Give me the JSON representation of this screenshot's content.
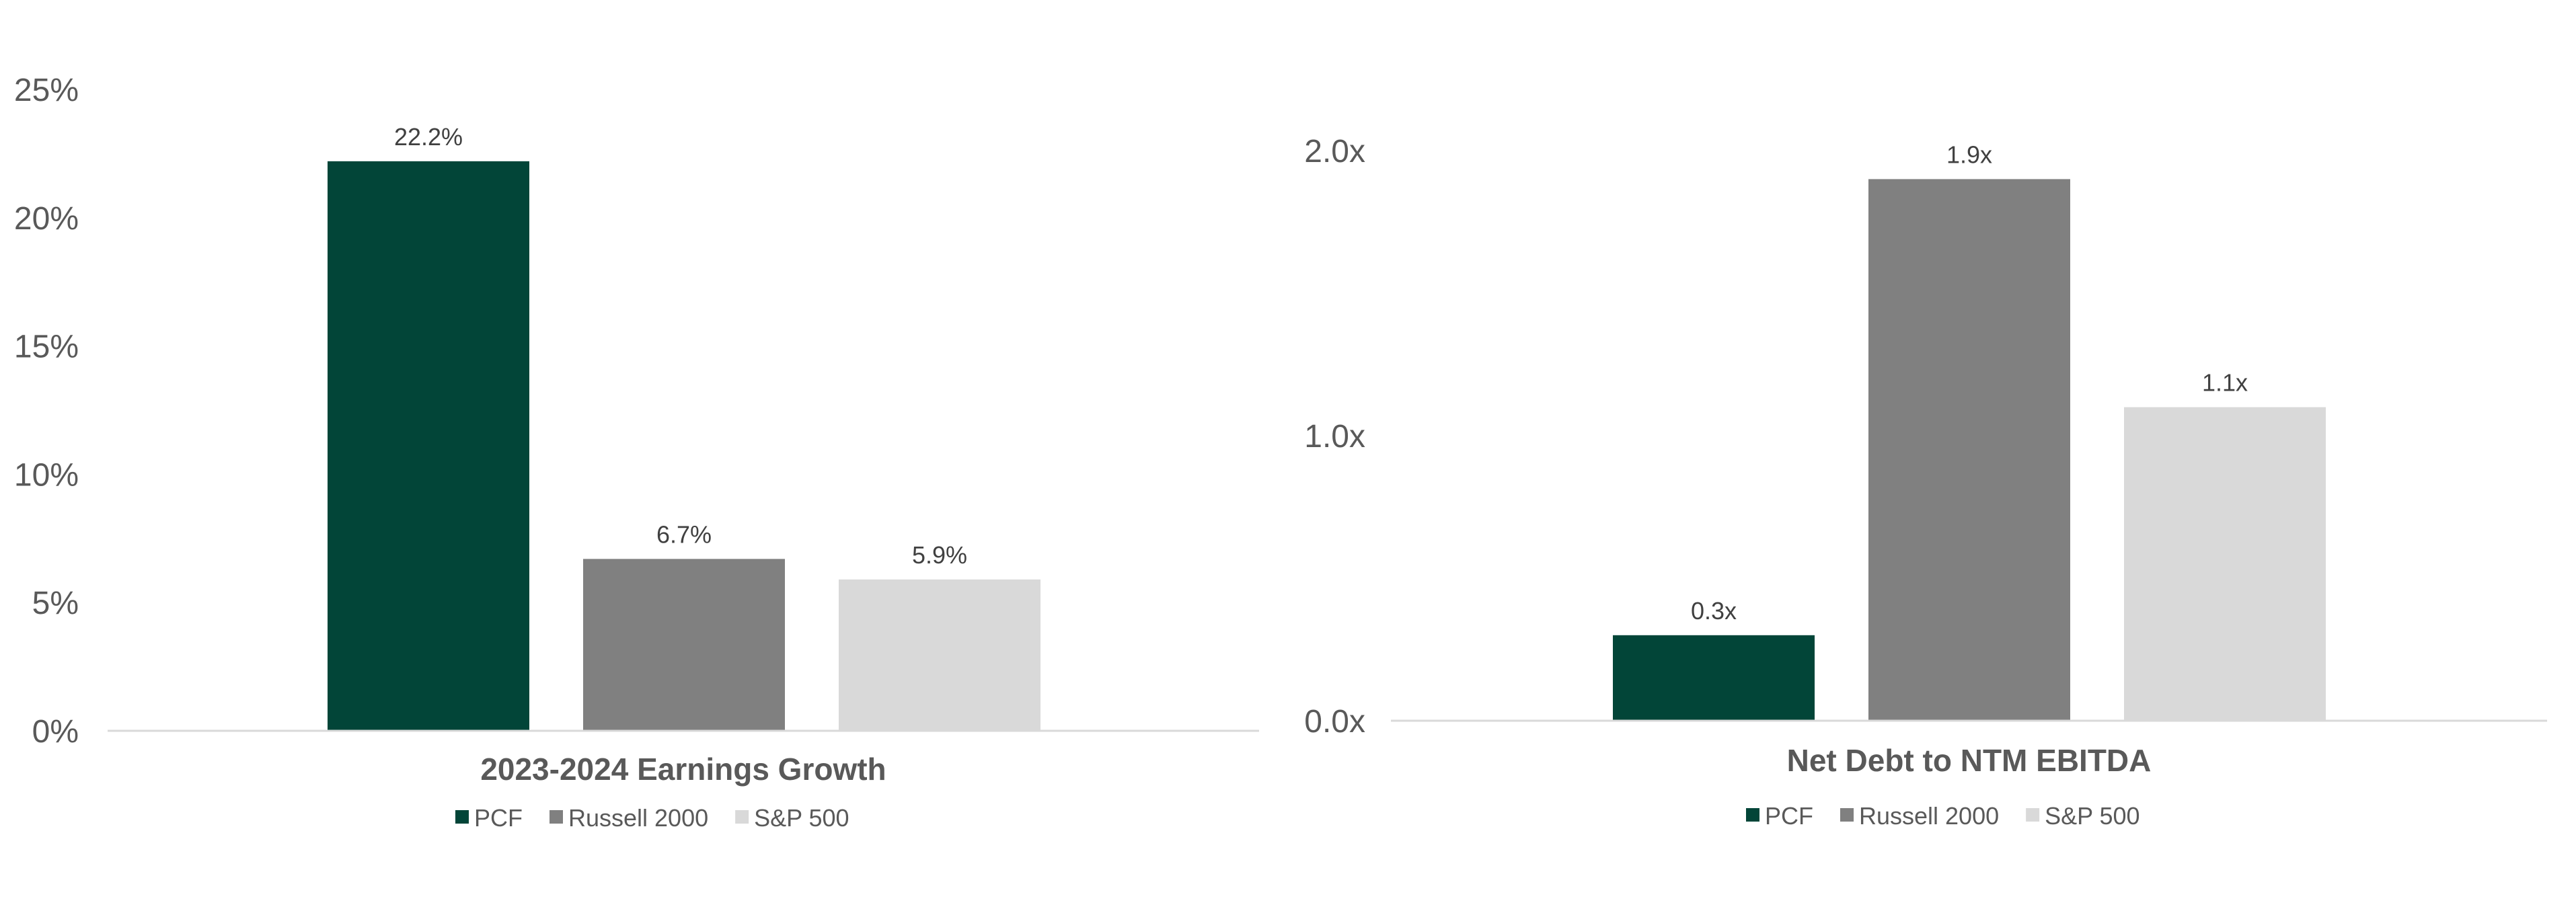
{
  "chart_data": [
    {
      "type": "bar",
      "title": "2023-2024 Earnings Growth",
      "categories": [
        "PCF",
        "Russell 2000",
        "S&P 500"
      ],
      "values": [
        22.2,
        6.7,
        5.9
      ],
      "data_labels": [
        "22.2%",
        "6.7%",
        "5.9%"
      ],
      "colors": [
        "#024538",
        "#808080",
        "#D9D9D9"
      ],
      "ylim": [
        0,
        25
      ],
      "yticks": [
        0,
        5,
        10,
        15,
        20,
        25
      ],
      "ytick_labels": [
        "0%",
        "5%",
        "10%",
        "15%",
        "20%",
        "25%"
      ],
      "xlabel": "",
      "ylabel": "",
      "grid": false,
      "legend": {
        "position": "bottom",
        "entries": [
          "PCF",
          "Russell 2000",
          "S&P 500"
        ]
      }
    },
    {
      "type": "bar",
      "title": "Net Debt to NTM EBITDA",
      "categories": [
        "PCF",
        "Russell 2000",
        "S&P 500"
      ],
      "values": [
        0.3,
        1.9,
        1.1
      ],
      "data_labels": [
        "0.3x",
        "1.9x",
        "1.1x"
      ],
      "colors": [
        "#024538",
        "#808080",
        "#D9D9D9"
      ],
      "ylim": [
        0,
        2
      ],
      "yticks": [
        0,
        1,
        2
      ],
      "ytick_labels": [
        "0.0x",
        "1.0x",
        "2.0x"
      ],
      "xlabel": "",
      "ylabel": "",
      "grid": false,
      "legend": {
        "position": "bottom",
        "entries": [
          "PCF",
          "Russell 2000",
          "S&P 500"
        ]
      }
    }
  ]
}
